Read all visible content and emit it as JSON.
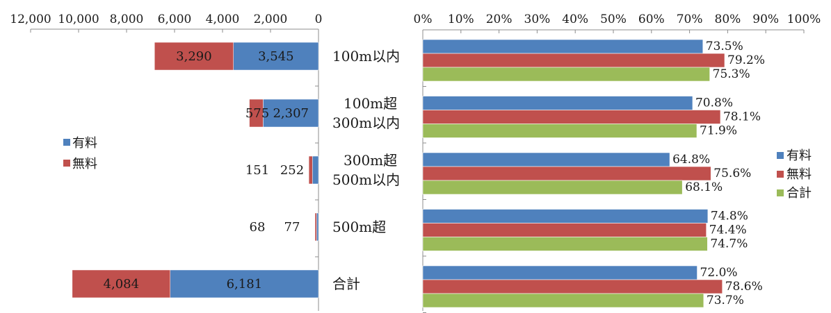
{
  "chart_data": [
    {
      "type": "bar",
      "orientation": "horizontal",
      "stacked": true,
      "x_reversed": true,
      "categories": [
        "100m以内",
        "100m超\n300m以内",
        "300m超\n500m以内",
        "500m超",
        "合計"
      ],
      "series": [
        {
          "name": "有料",
          "color": "#4F81BD",
          "values": [
            3545,
            2307,
            252,
            77,
            6181
          ],
          "labels": [
            "3,545",
            "2,307",
            "252",
            "77",
            "6,181"
          ]
        },
        {
          "name": "無料",
          "color": "#C0504D",
          "values": [
            3290,
            575,
            151,
            68,
            4084
          ],
          "labels": [
            "3,290",
            "575",
            "151",
            "68",
            "4,084"
          ]
        }
      ],
      "xlim": [
        0,
        12000
      ],
      "ticks": [
        "12,000",
        "10,000",
        "8,000",
        "6,000",
        "4,000",
        "2,000",
        "0"
      ],
      "legend": [
        "有料",
        "無料"
      ],
      "legend_position": "left"
    },
    {
      "type": "bar",
      "orientation": "horizontal",
      "stacked": false,
      "series": [
        {
          "name": "有料",
          "color": "#4F81BD",
          "values": [
            73.5,
            70.8,
            64.8,
            74.8,
            72.0
          ],
          "labels": [
            "73.5%",
            "70.8%",
            "64.8%",
            "74.8%",
            "72.0%"
          ]
        },
        {
          "name": "無料",
          "color": "#C0504D",
          "values": [
            79.2,
            78.1,
            75.6,
            74.4,
            78.6
          ],
          "labels": [
            "79.2%",
            "78.1%",
            "75.6%",
            "74.4%",
            "78.6%"
          ]
        },
        {
          "name": "合計",
          "color": "#9BBB59",
          "values": [
            75.3,
            71.9,
            68.1,
            74.7,
            73.7
          ],
          "labels": [
            "75.3%",
            "71.9%",
            "68.1%",
            "74.7%",
            "73.7%"
          ]
        }
      ],
      "xlim": [
        0,
        100
      ],
      "ticks": [
        "0%",
        "10%",
        "20%",
        "30%",
        "40%",
        "50%",
        "60%",
        "70%",
        "80%",
        "90%",
        "100%"
      ],
      "legend": [
        "有料",
        "無料",
        "合計"
      ],
      "legend_position": "right"
    }
  ]
}
